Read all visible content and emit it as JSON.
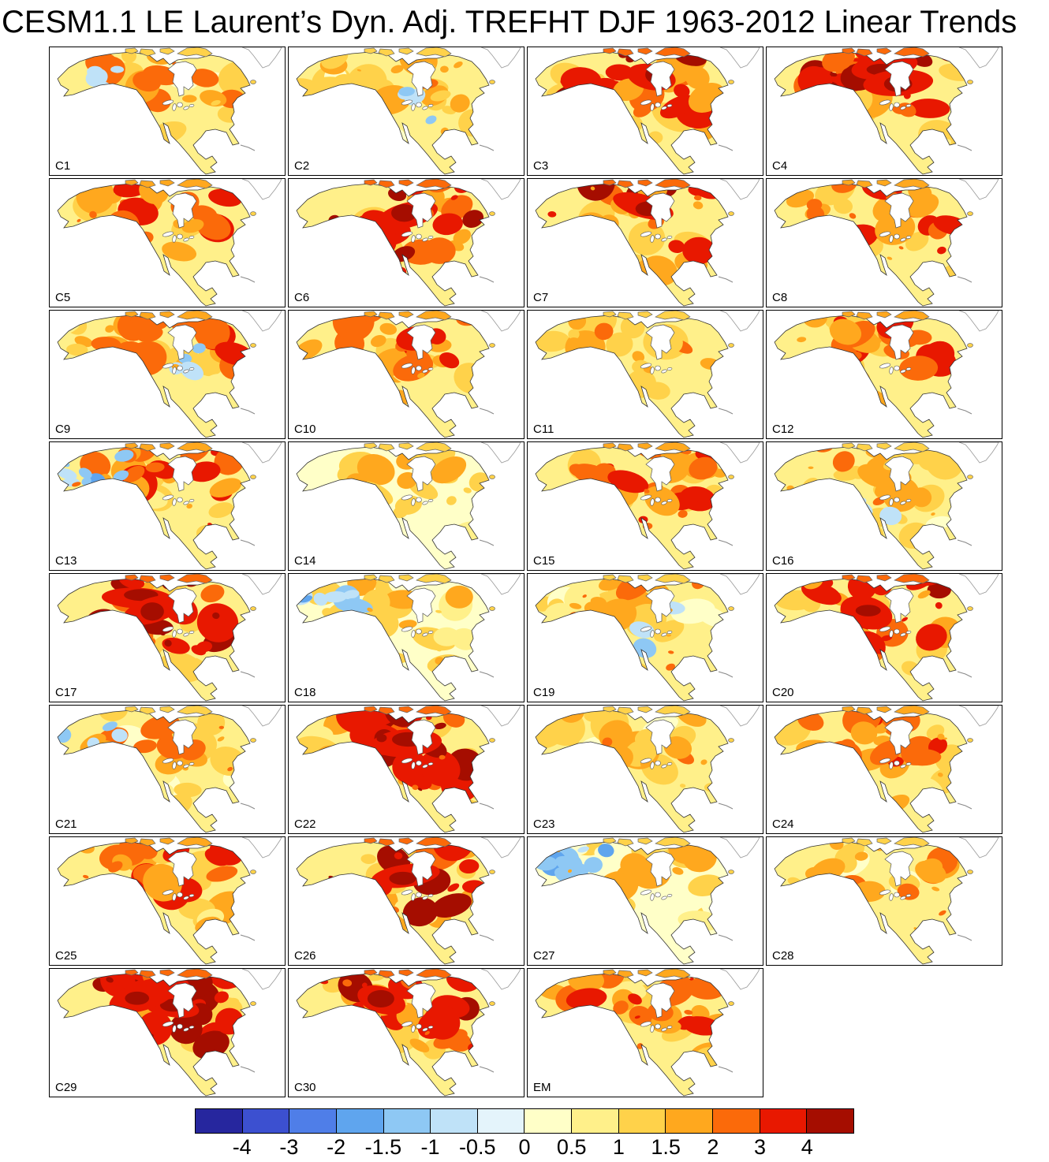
{
  "title": "CESM1.1 LE Laurent’s Dyn. Adj. TREFHT DJF 1963-2012 Linear Trends",
  "chart_data": {
    "type": "heatmap",
    "title": "CESM1.1 LE Laurent’s Dyn. Adj. TREFHT DJF 1963-2012 Linear Trends",
    "variable": "TREFHT",
    "season": "DJF",
    "period": "1963-2012",
    "region": "North America",
    "layout": "8 rows x 4 columns of map panels, shared colorbar at bottom",
    "panels": [
      {
        "label": "C1",
        "warm": 2,
        "cool": 1,
        "cool_region": "nw"
      },
      {
        "label": "C2",
        "warm": 2,
        "cool": 1,
        "cool_region": "center"
      },
      {
        "label": "C3",
        "warm": 4,
        "cool": 0,
        "cool_region": "none"
      },
      {
        "label": "C4",
        "warm": 5,
        "cool": 0,
        "cool_region": "none"
      },
      {
        "label": "C5",
        "warm": 3,
        "cool": 0,
        "cool_region": "none"
      },
      {
        "label": "C6",
        "warm": 4,
        "cool": 0,
        "cool_region": "none"
      },
      {
        "label": "C7",
        "warm": 4,
        "cool": 0,
        "cool_region": "none"
      },
      {
        "label": "C8",
        "warm": 3,
        "cool": 0,
        "cool_region": "none"
      },
      {
        "label": "C9",
        "warm": 3,
        "cool": 1,
        "cool_region": "center"
      },
      {
        "label": "C10",
        "warm": 3,
        "cool": 0,
        "cool_region": "none"
      },
      {
        "label": "C11",
        "warm": 2,
        "cool": 0,
        "cool_region": "none"
      },
      {
        "label": "C12",
        "warm": 3,
        "cool": 0,
        "cool_region": "none"
      },
      {
        "label": "C13",
        "warm": 3,
        "cool": 2,
        "cool_region": "nw"
      },
      {
        "label": "C14",
        "warm": 1,
        "cool": 0,
        "cool_region": "none"
      },
      {
        "label": "C15",
        "warm": 3,
        "cool": 0,
        "cool_region": "none"
      },
      {
        "label": "C16",
        "warm": 2,
        "cool": 1,
        "cool_region": "center"
      },
      {
        "label": "C17",
        "warm": 5,
        "cool": 0,
        "cool_region": "none"
      },
      {
        "label": "C18",
        "warm": 1,
        "cool": 2,
        "cool_region": "nw"
      },
      {
        "label": "C19",
        "warm": 2,
        "cool": 1,
        "cool_region": "center"
      },
      {
        "label": "C20",
        "warm": 4,
        "cool": 0,
        "cool_region": "none"
      },
      {
        "label": "C21",
        "warm": 2,
        "cool": 1,
        "cool_region": "nw"
      },
      {
        "label": "C22",
        "warm": 5,
        "cool": 0,
        "cool_region": "none"
      },
      {
        "label": "C23",
        "warm": 2,
        "cool": 0,
        "cool_region": "none"
      },
      {
        "label": "C24",
        "warm": 3,
        "cool": 0,
        "cool_region": "none"
      },
      {
        "label": "C25",
        "warm": 3,
        "cool": 0,
        "cool_region": "none"
      },
      {
        "label": "C26",
        "warm": 4,
        "cool": 0,
        "cool_region": "none"
      },
      {
        "label": "C27",
        "warm": 1,
        "cool": 3,
        "cool_region": "nw"
      },
      {
        "label": "C28",
        "warm": 2,
        "cool": 0,
        "cool_region": "none"
      },
      {
        "label": "C29",
        "warm": 5,
        "cool": 0,
        "cool_region": "none"
      },
      {
        "label": "C30",
        "warm": 4,
        "cool": 0,
        "cool_region": "none"
      },
      {
        "label": "EM",
        "warm": 3,
        "cool": 0,
        "cool_region": "none"
      }
    ],
    "colorbar": {
      "tick_labels": [
        "-4",
        "-3",
        "-2",
        "-1.5",
        "-1",
        "-0.5",
        "0",
        "0.5",
        "1",
        "1.5",
        "2",
        "3",
        "4"
      ],
      "colors": [
        "#26269e",
        "#3c50d0",
        "#4f7ee8",
        "#5fa5ee",
        "#8ec8f4",
        "#bfe2f8",
        "#e4f4fb",
        "#ffffc8",
        "#fff08a",
        "#ffd24a",
        "#ffa81e",
        "#fb6a0a",
        "#e81800",
        "#a50d00"
      ]
    }
  }
}
